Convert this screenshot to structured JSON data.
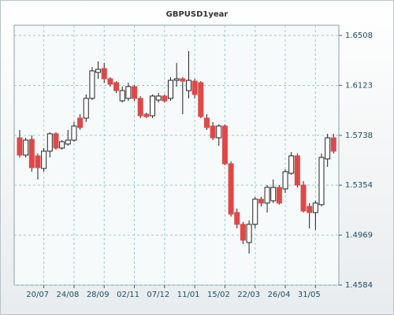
{
  "chart_data": {
    "type": "candlestick",
    "title": "GBPUSD1year",
    "open": [
      1.5719,
      1.5586,
      1.5707,
      1.558,
      1.5483,
      1.5616,
      1.575,
      1.564,
      1.5671,
      1.5701,
      1.5871,
      1.5871,
      1.6023,
      1.6223,
      1.6253,
      1.6174,
      1.6144,
      1.6004,
      1.6023,
      1.6114,
      1.6023,
      1.5901,
      1.5889,
      1.601,
      1.6041,
      1.6023,
      1.6162,
      1.6174,
      1.6083,
      1.6156,
      1.6144,
      1.5871,
      1.581,
      1.5719,
      1.581,
      1.5519,
      1.5143,
      1.5052,
      1.4912,
      1.5052,
      1.5246,
      1.5216,
      1.5234,
      1.5337,
      1.5325,
      1.5446,
      1.558,
      1.5355,
      1.5191,
      1.5143,
      1.5204,
      1.5556,
      1.5719
    ],
    "high": [
      1.578,
      1.5719,
      1.5738,
      1.5598,
      1.564,
      1.5762,
      1.5762,
      1.5701,
      1.578,
      1.5841,
      1.5901,
      1.6053,
      1.6265,
      1.6308,
      1.6296,
      1.6186,
      1.6156,
      1.6114,
      1.6144,
      1.6126,
      1.6041,
      1.5913,
      1.6053,
      1.6065,
      1.6053,
      1.6186,
      1.6296,
      1.6186,
      1.6387,
      1.6174,
      1.6156,
      1.5901,
      1.5841,
      1.5823,
      1.5823,
      1.5537,
      1.5173,
      1.507,
      1.5082,
      1.5264,
      1.5264,
      1.5355,
      1.5398,
      1.5355,
      1.5476,
      1.561,
      1.5598,
      1.5385,
      1.5216,
      1.5234,
      1.5598,
      1.575,
      1.575
    ],
    "low": [
      1.5568,
      1.5568,
      1.5458,
      1.5398,
      1.5458,
      1.5568,
      1.5628,
      1.5628,
      1.5658,
      1.5689,
      1.578,
      1.5841,
      1.601,
      1.6174,
      1.6144,
      1.6114,
      1.6065,
      1.5992,
      1.6004,
      1.6004,
      1.5871,
      1.5871,
      1.5871,
      1.5992,
      1.5992,
      1.6004,
      1.6114,
      1.5901,
      1.6023,
      1.6023,
      1.5871,
      1.578,
      1.5701,
      1.5658,
      1.5507,
      1.5112,
      1.5021,
      1.49,
      1.4827,
      1.5021,
      1.5191,
      1.5143,
      1.5216,
      1.5204,
      1.5294,
      1.5434,
      1.5337,
      1.5143,
      1.5021,
      1.5009,
      1.5191,
      1.5495,
      1.5598
    ],
    "close": [
      1.5586,
      1.5701,
      1.5489,
      1.5489,
      1.5616,
      1.575,
      1.564,
      1.5689,
      1.5701,
      1.581,
      1.5798,
      1.6023,
      1.6235,
      1.6247,
      1.6174,
      1.6132,
      1.6083,
      1.6083,
      1.6114,
      1.6023,
      1.5889,
      1.5883,
      1.6041,
      1.6041,
      1.6004,
      1.6162,
      1.6174,
      1.6156,
      1.6162,
      1.6053,
      1.5883,
      1.5798,
      1.5719,
      1.581,
      1.5519,
      1.5131,
      1.5052,
      1.493,
      1.5052,
      1.5246,
      1.5216,
      1.5337,
      1.5337,
      1.5216,
      1.5458,
      1.558,
      1.5355,
      1.5155,
      1.5143,
      1.5216,
      1.5568,
      1.5719,
      1.5616
    ],
    "up_color": "#ffffff",
    "down_color": "#e04848",
    "ylim": [
      1.4584,
      1.6587
    ],
    "yticks": [
      1.4584,
      1.4969,
      1.5354,
      1.5738,
      1.6123,
      1.6508
    ],
    "xticks": [
      {
        "value": 4,
        "label": "20/07"
      },
      {
        "value": 9,
        "label": "24/08"
      },
      {
        "value": 14,
        "label": "28/09"
      },
      {
        "value": 19,
        "label": "02/11"
      },
      {
        "value": 24,
        "label": "07/12"
      },
      {
        "value": 29,
        "label": "11/01"
      },
      {
        "value": 34,
        "label": "15/02"
      },
      {
        "value": 39,
        "label": "22/03"
      },
      {
        "value": 44,
        "label": "26/04"
      },
      {
        "value": 49,
        "label": "31/05"
      }
    ],
    "grid": true
  }
}
